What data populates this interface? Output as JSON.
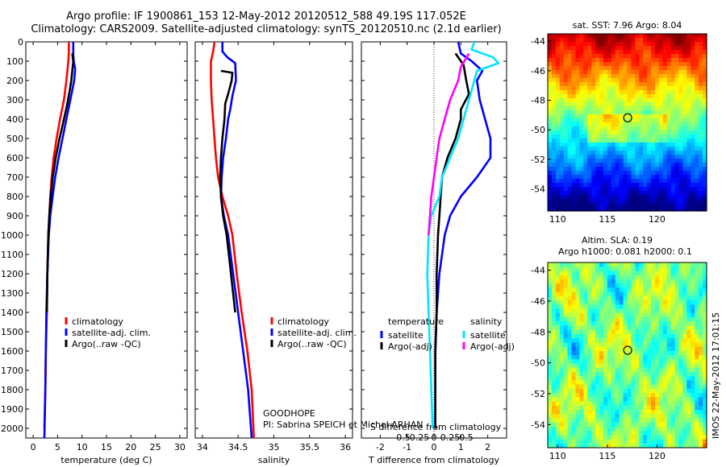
{
  "header": {
    "line1": "Argo profile: IF 1900861_153 12-May-2012 20120512_588 49.19S 117.052E",
    "line2": "Climatology: CARS2009. Satellite-adjusted climatology: synTS_20120510.nc (2.1d earlier)"
  },
  "colors": {
    "red": "#ff0000",
    "blue": "#0000ff",
    "black": "#000000",
    "cyan": "#00e5ff",
    "magenta": "#ff00ff"
  },
  "chart_data": [
    {
      "type": "line",
      "id": "temperature",
      "xlabel": "temperature (deg C)",
      "xlim": [
        -1.5,
        31.5
      ],
      "xticks": [
        0,
        5,
        10,
        15,
        20,
        25,
        30
      ],
      "ylim": [
        0,
        2050
      ],
      "yticks": [
        0,
        100,
        200,
        300,
        400,
        500,
        600,
        700,
        800,
        900,
        1000,
        1100,
        1200,
        1300,
        1400,
        1500,
        1600,
        1700,
        1800,
        1900,
        2000
      ],
      "legend": [
        "climatology",
        "satellite-adj. clim.",
        "Argo(..raw -QC)"
      ],
      "series": [
        {
          "name": "climatology",
          "color": "#ff0000",
          "points": [
            [
              7.3,
              0
            ],
            [
              7.3,
              60
            ],
            [
              7.2,
              100
            ],
            [
              6.8,
              200
            ],
            [
              6.3,
              300
            ],
            [
              5.5,
              400
            ],
            [
              4.8,
              500
            ],
            [
              4.2,
              600
            ],
            [
              3.8,
              700
            ],
            [
              3.5,
              800
            ],
            [
              3.3,
              900
            ],
            [
              3.1,
              1000
            ],
            [
              2.9,
              1200
            ],
            [
              2.8,
              1400
            ],
            [
              2.6,
              1600
            ],
            [
              2.5,
              1800
            ],
            [
              2.3,
              2000
            ]
          ]
        },
        {
          "name": "satellite-adj. clim.",
          "color": "#0000ff",
          "points": [
            [
              8.2,
              0
            ],
            [
              8.2,
              60
            ],
            [
              8.3,
              100
            ],
            [
              8.6,
              140
            ],
            [
              8.4,
              200
            ],
            [
              7.6,
              300
            ],
            [
              6.8,
              400
            ],
            [
              6.0,
              500
            ],
            [
              5.2,
              600
            ],
            [
              4.5,
              700
            ],
            [
              4.0,
              800
            ],
            [
              3.5,
              900
            ],
            [
              3.2,
              1000
            ],
            [
              2.9,
              1200
            ],
            [
              2.7,
              1400
            ],
            [
              2.6,
              1600
            ],
            [
              2.5,
              1800
            ],
            [
              2.3,
              2050
            ]
          ]
        },
        {
          "name": "Argo(..raw -QC)",
          "color": "#000000",
          "points": [
            [
              8.0,
              60
            ],
            [
              8.2,
              100
            ],
            [
              8.0,
              150
            ],
            [
              7.8,
              200
            ],
            [
              7.5,
              250
            ],
            [
              7.0,
              320
            ],
            [
              6.3,
              400
            ],
            [
              5.4,
              500
            ],
            [
              4.6,
              600
            ],
            [
              4.0,
              700
            ],
            [
              3.6,
              800
            ],
            [
              3.3,
              900
            ],
            [
              3.1,
              1000
            ],
            [
              2.9,
              1200
            ],
            [
              2.8,
              1400
            ]
          ]
        }
      ]
    },
    {
      "type": "line",
      "id": "salinity",
      "xlabel": "salinity",
      "xlim": [
        33.9,
        36.1
      ],
      "xticks": [
        34,
        34.5,
        35,
        35.5,
        36
      ],
      "ylim": [
        0,
        2050
      ],
      "legend": [
        "climatology",
        "satellite-adj. clim.",
        "Argo(..raw -QC)"
      ],
      "annotation": [
        "GOODHOPE",
        "PI: Sabrina SPEICH et Michel ARHAN"
      ],
      "series": [
        {
          "name": "climatology",
          "color": "#ff0000",
          "points": [
            [
              34.17,
              0
            ],
            [
              34.15,
              50
            ],
            [
              34.12,
              100
            ],
            [
              34.12,
              200
            ],
            [
              34.13,
              300
            ],
            [
              34.15,
              400
            ],
            [
              34.17,
              500
            ],
            [
              34.19,
              600
            ],
            [
              34.22,
              700
            ],
            [
              34.28,
              800
            ],
            [
              34.36,
              900
            ],
            [
              34.42,
              1000
            ],
            [
              34.48,
              1200
            ],
            [
              34.55,
              1400
            ],
            [
              34.63,
              1600
            ],
            [
              34.69,
              1800
            ],
            [
              34.72,
              2050
            ]
          ]
        },
        {
          "name": "satellite-adj. clim.",
          "color": "#0000ff",
          "points": [
            [
              34.28,
              0
            ],
            [
              34.28,
              50
            ],
            [
              34.35,
              80
            ],
            [
              34.46,
              110
            ],
            [
              34.47,
              200
            ],
            [
              34.42,
              280
            ],
            [
              34.39,
              350
            ],
            [
              34.36,
              400
            ],
            [
              34.33,
              500
            ],
            [
              34.29,
              600
            ],
            [
              34.27,
              700
            ],
            [
              34.26,
              800
            ],
            [
              34.3,
              900
            ],
            [
              34.36,
              1000
            ],
            [
              34.43,
              1200
            ],
            [
              34.5,
              1400
            ],
            [
              34.57,
              1600
            ],
            [
              34.64,
              1800
            ],
            [
              34.69,
              2050
            ]
          ]
        },
        {
          "name": "Argo(..raw -QC)",
          "color": "#000000",
          "points": [
            [
              34.26,
              150
            ],
            [
              34.42,
              160
            ],
            [
              34.41,
              200
            ],
            [
              34.36,
              270
            ],
            [
              34.32,
              320
            ],
            [
              34.31,
              400
            ],
            [
              34.28,
              500
            ],
            [
              34.26,
              600
            ],
            [
              34.25,
              700
            ],
            [
              34.26,
              800
            ],
            [
              34.29,
              900
            ],
            [
              34.34,
              1000
            ],
            [
              34.4,
              1200
            ],
            [
              34.46,
              1400
            ]
          ]
        }
      ]
    },
    {
      "type": "line",
      "id": "difference",
      "xlabel": "T difference from climatology",
      "xlabel_top": "S difference from climatology",
      "xlim": [
        -2.7,
        2.7
      ],
      "xticks": [
        -2,
        -1,
        0,
        1,
        2
      ],
      "sticks": [
        -0.5,
        -0.25,
        0,
        0.25,
        0.5
      ],
      "legend_titles": [
        "temperature",
        "salinity"
      ],
      "legend": [
        "satellite",
        "Argo(-adj)",
        "satellite",
        "Argo(-adj)"
      ],
      "series": [
        {
          "name": "temperature satellite",
          "color": "#0000ff",
          "points": [
            [
              0.9,
              0
            ],
            [
              1.0,
              60
            ],
            [
              1.4,
              100
            ],
            [
              1.8,
              150
            ],
            [
              1.6,
              200
            ],
            [
              1.7,
              300
            ],
            [
              1.9,
              400
            ],
            [
              2.1,
              500
            ],
            [
              2.1,
              600
            ],
            [
              1.6,
              700
            ],
            [
              1.0,
              800
            ],
            [
              0.6,
              900
            ],
            [
              0.4,
              1000
            ],
            [
              0.2,
              1200
            ],
            [
              0.1,
              1400
            ],
            [
              0.05,
              1600
            ],
            [
              0.05,
              1800
            ],
            [
              0.05,
              2000
            ]
          ]
        },
        {
          "name": "temperature Argo(-adj)",
          "color": "#000000",
          "points": [
            [
              0.8,
              60
            ],
            [
              1.1,
              120
            ],
            [
              1.2,
              200
            ],
            [
              1.3,
              270
            ],
            [
              1.0,
              350
            ],
            [
              1.0,
              400
            ],
            [
              0.8,
              500
            ],
            [
              0.5,
              600
            ],
            [
              0.3,
              700
            ],
            [
              0.25,
              800
            ],
            [
              0.2,
              900
            ],
            [
              0.15,
              1000
            ],
            [
              0.1,
              1200
            ],
            [
              0.1,
              1400
            ],
            [
              0.05,
              1600
            ],
            [
              0.05,
              1800
            ],
            [
              0.05,
              2000
            ]
          ]
        },
        {
          "name": "salinity satellite",
          "color": "#00e5ff",
          "points": [
            [
              1.5,
              0
            ],
            [
              1.4,
              40
            ],
            [
              2.2,
              80
            ],
            [
              2.4,
              110
            ],
            [
              1.6,
              150
            ],
            [
              1.5,
              200
            ],
            [
              1.3,
              300
            ],
            [
              1.1,
              400
            ],
            [
              0.9,
              500
            ],
            [
              0.6,
              600
            ],
            [
              0.3,
              700
            ],
            [
              0.2,
              800
            ],
            [
              -0.1,
              900
            ],
            [
              -0.2,
              1000
            ],
            [
              -0.25,
              1200
            ],
            [
              -0.2,
              1400
            ],
            [
              -0.15,
              1600
            ],
            [
              -0.1,
              1800
            ],
            [
              -0.05,
              2000
            ]
          ]
        },
        {
          "name": "salinity Argo(-adj)",
          "color": "#ff00ff",
          "points": [
            [
              1.3,
              60
            ],
            [
              1.0,
              130
            ],
            [
              0.9,
              200
            ],
            [
              0.6,
              300
            ],
            [
              0.4,
              400
            ],
            [
              0.2,
              500
            ],
            [
              0.1,
              600
            ],
            [
              0.0,
              700
            ],
            [
              -0.1,
              800
            ],
            [
              -0.15,
              900
            ],
            [
              -0.2,
              1000
            ]
          ]
        }
      ]
    },
    {
      "type": "heatmap",
      "id": "sst-map",
      "title": "sat. SST: 7.96 Argo: 8.04",
      "xticks": [
        110,
        115,
        120
      ],
      "yticks": [
        -44,
        -46,
        -48,
        -50,
        -52,
        -54
      ],
      "xlim": [
        109,
        125
      ],
      "ylim": [
        -55.5,
        -43.5
      ],
      "marker": [
        117.05,
        -49.19
      ]
    },
    {
      "type": "heatmap",
      "id": "sla-map",
      "title": "Altim. SLA: 0.19",
      "subtitle": "Argo h1000: 0.081 h2000: 0.1",
      "xticks": [
        110,
        115,
        120
      ],
      "yticks": [
        -44,
        -46,
        -48,
        -50,
        -52,
        -54
      ],
      "xlim": [
        109,
        125
      ],
      "ylim": [
        -55.5,
        -43.5
      ],
      "marker": [
        117.05,
        -49.19
      ]
    }
  ],
  "watermark": "IMOS 22-May-2012 17:01:15"
}
